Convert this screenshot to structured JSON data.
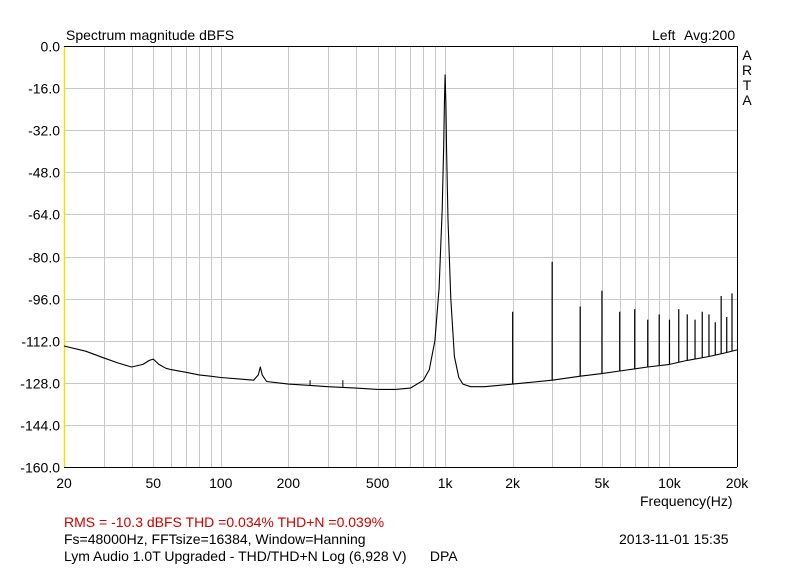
{
  "app_mark": "ARTA",
  "chart_data": {
    "type": "line",
    "title": "Spectrum magnitude dBFS",
    "channel": "Left",
    "averaging": "Avg:200",
    "xlabel": "Frequency(Hz)",
    "ylabel": "",
    "x_scale": "log",
    "xlim": [
      20,
      20000
    ],
    "ylim": [
      -160,
      0
    ],
    "grid": true,
    "x_ticks": [
      {
        "value": 20,
        "label": "20"
      },
      {
        "value": 50,
        "label": "50"
      },
      {
        "value": 100,
        "label": "100"
      },
      {
        "value": 200,
        "label": "200"
      },
      {
        "value": 500,
        "label": "500"
      },
      {
        "value": 1000,
        "label": "1k"
      },
      {
        "value": 2000,
        "label": "2k"
      },
      {
        "value": 5000,
        "label": "5k"
      },
      {
        "value": 10000,
        "label": "10k"
      },
      {
        "value": 20000,
        "label": "20k"
      }
    ],
    "y_ticks": [
      "0.0",
      "-16.0",
      "-32.0",
      "-48.0",
      "-64.0",
      "-80.0",
      "-96.0",
      "-112.0",
      "-128.0",
      "-144.0",
      "-160.0"
    ],
    "series": [
      {
        "color": "#000000",
        "points": [
          [
            20,
            -114
          ],
          [
            25,
            -116
          ],
          [
            30,
            -118.5
          ],
          [
            35,
            -120.5
          ],
          [
            40,
            -122
          ],
          [
            45,
            -121
          ],
          [
            48,
            -119.5
          ],
          [
            50,
            -119
          ],
          [
            53,
            -121
          ],
          [
            57,
            -122.5
          ],
          [
            60,
            -123
          ],
          [
            70,
            -124
          ],
          [
            80,
            -125
          ],
          [
            90,
            -125.5
          ],
          [
            100,
            -126
          ],
          [
            120,
            -126.5
          ],
          [
            140,
            -127
          ],
          [
            147,
            -125
          ],
          [
            150,
            -122
          ],
          [
            153,
            -125
          ],
          [
            160,
            -127.5
          ],
          [
            200,
            -128.5
          ],
          [
            250,
            -129
          ],
          [
            300,
            -129.5
          ],
          [
            400,
            -130
          ],
          [
            500,
            -130.5
          ],
          [
            600,
            -130.5
          ],
          [
            700,
            -130
          ],
          [
            800,
            -127
          ],
          [
            850,
            -123
          ],
          [
            900,
            -112
          ],
          [
            940,
            -92
          ],
          [
            970,
            -62
          ],
          [
            985,
            -38
          ],
          [
            992,
            -22
          ],
          [
            1000,
            -11
          ],
          [
            1008,
            -22
          ],
          [
            1015,
            -40
          ],
          [
            1030,
            -66
          ],
          [
            1060,
            -96
          ],
          [
            1100,
            -118
          ],
          [
            1150,
            -126
          ],
          [
            1200,
            -128.5
          ],
          [
            1300,
            -129.5
          ],
          [
            1500,
            -129.5
          ],
          [
            2000,
            -128.5
          ],
          [
            3000,
            -127
          ],
          [
            4000,
            -125.5
          ],
          [
            5000,
            -124.5
          ],
          [
            6000,
            -123.5
          ],
          [
            8000,
            -122
          ],
          [
            10000,
            -121
          ],
          [
            12000,
            -119.5
          ],
          [
            15000,
            -118
          ],
          [
            18000,
            -116.5
          ],
          [
            20000,
            -115.5
          ]
        ]
      }
    ],
    "harmonics": [
      {
        "frequency": 2000,
        "level": -101
      },
      {
        "frequency": 3000,
        "level": -82
      },
      {
        "frequency": 4000,
        "level": -99
      },
      {
        "frequency": 5000,
        "level": -93
      },
      {
        "frequency": 6000,
        "level": -101
      },
      {
        "frequency": 7000,
        "level": -100
      },
      {
        "frequency": 8000,
        "level": -104
      },
      {
        "frequency": 9000,
        "level": -102
      },
      {
        "frequency": 10000,
        "level": -104
      },
      {
        "frequency": 11000,
        "level": -100
      },
      {
        "frequency": 12000,
        "level": -102
      },
      {
        "frequency": 13000,
        "level": -104
      },
      {
        "frequency": 14000,
        "level": -101
      },
      {
        "frequency": 15000,
        "level": -102
      },
      {
        "frequency": 16000,
        "level": -105
      },
      {
        "frequency": 17000,
        "level": -95
      },
      {
        "frequency": 18000,
        "level": -103
      },
      {
        "frequency": 19000,
        "level": -94
      }
    ],
    "hum_spurs": [
      {
        "frequency": 150,
        "level": -122
      },
      {
        "frequency": 250,
        "level": -127
      },
      {
        "frequency": 350,
        "level": -127
      }
    ]
  },
  "results": {
    "measurements": "RMS =  -10.3 dBFS   THD =0.034%   THD+N =0.039%",
    "settings": "Fs=48000Hz, FFTsize=16384, Window=Hanning",
    "description": "Lym Audio 1.0T Upgraded - THD/THD+N Log (6,928 V)      DPA",
    "datetime": "2013-11-01   15:35"
  }
}
